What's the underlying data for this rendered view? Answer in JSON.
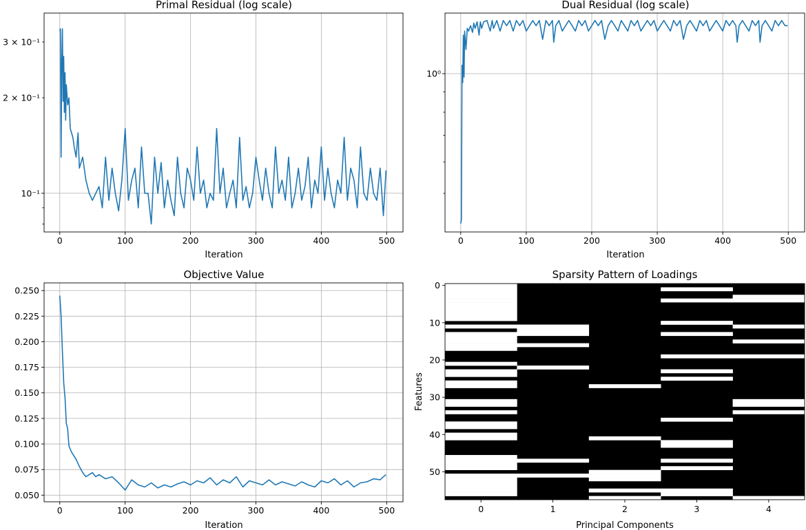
{
  "colors": {
    "line": "#1f77b4",
    "grid": "#b0b0b0",
    "on": "#000000",
    "off": "#ffffff"
  },
  "chart_data": [
    {
      "type": "line",
      "title": "Primal Residual (log scale)",
      "xlabel": "Iteration",
      "ylabel": "",
      "yscale": "log",
      "grid": true,
      "xlim": [
        -24,
        525
      ],
      "ylim": [
        0.0755,
        0.37
      ],
      "xticks": [
        0,
        100,
        200,
        300,
        400,
        500
      ],
      "ytick_labels": [
        {
          "value": 0.3,
          "label": "3 × 10⁻¹"
        },
        {
          "value": 0.2,
          "label": "2 × 10⁻¹"
        },
        {
          "value": 0.1,
          "label": "10⁻¹"
        }
      ],
      "x": [
        0,
        1,
        2,
        3,
        4,
        5,
        6,
        7,
        8,
        9,
        10,
        12,
        14,
        16,
        18,
        20,
        22,
        25,
        28,
        30,
        35,
        40,
        45,
        50,
        55,
        60,
        65,
        70,
        75,
        80,
        85,
        90,
        95,
        100,
        105,
        110,
        115,
        120,
        125,
        130,
        135,
        140,
        145,
        150,
        155,
        160,
        165,
        170,
        175,
        180,
        185,
        190,
        195,
        200,
        205,
        210,
        215,
        220,
        225,
        230,
        235,
        240,
        245,
        250,
        255,
        260,
        265,
        270,
        275,
        280,
        285,
        290,
        295,
        300,
        305,
        310,
        315,
        320,
        325,
        330,
        335,
        340,
        345,
        350,
        355,
        360,
        365,
        370,
        375,
        380,
        385,
        390,
        395,
        400,
        405,
        410,
        415,
        420,
        425,
        430,
        435,
        440,
        445,
        450,
        455,
        460,
        465,
        470,
        475,
        480,
        485,
        490,
        495,
        499
      ],
      "values": [
        0.325,
        0.33,
        0.13,
        0.26,
        0.33,
        0.195,
        0.27,
        0.18,
        0.24,
        0.17,
        0.22,
        0.19,
        0.2,
        0.16,
        0.155,
        0.15,
        0.14,
        0.13,
        0.155,
        0.12,
        0.13,
        0.11,
        0.1,
        0.095,
        0.1,
        0.105,
        0.09,
        0.13,
        0.095,
        0.12,
        0.1,
        0.088,
        0.11,
        0.16,
        0.095,
        0.11,
        0.12,
        0.09,
        0.14,
        0.1,
        0.1,
        0.08,
        0.13,
        0.1,
        0.125,
        0.09,
        0.11,
        0.095,
        0.085,
        0.13,
        0.1,
        0.09,
        0.12,
        0.11,
        0.095,
        0.14,
        0.1,
        0.11,
        0.09,
        0.1,
        0.095,
        0.16,
        0.1,
        0.12,
        0.09,
        0.1,
        0.11,
        0.09,
        0.15,
        0.095,
        0.105,
        0.09,
        0.1,
        0.13,
        0.11,
        0.095,
        0.12,
        0.1,
        0.09,
        0.14,
        0.1,
        0.11,
        0.095,
        0.13,
        0.09,
        0.1,
        0.12,
        0.095,
        0.105,
        0.13,
        0.09,
        0.11,
        0.1,
        0.14,
        0.095,
        0.12,
        0.1,
        0.09,
        0.11,
        0.1,
        0.15,
        0.095,
        0.12,
        0.11,
        0.09,
        0.14,
        0.1,
        0.095,
        0.12,
        0.1,
        0.095,
        0.12,
        0.085,
        0.118
      ]
    },
    {
      "type": "line",
      "title": "Dual Residual (log scale)",
      "xlabel": "Iteration",
      "ylabel": "",
      "yscale": "log",
      "grid": true,
      "xlim": [
        -24,
        525
      ],
      "ylim": [
        0.4,
        1.42
      ],
      "xticks": [
        0,
        100,
        200,
        300,
        400,
        500
      ],
      "ytick_labels": [
        {
          "value": 1.0,
          "label": "10⁰"
        }
      ],
      "x": [
        0,
        1,
        2,
        3,
        4,
        5,
        6,
        8,
        10,
        12,
        15,
        18,
        20,
        22,
        25,
        28,
        30,
        32,
        35,
        40,
        45,
        48,
        50,
        55,
        60,
        65,
        70,
        75,
        80,
        85,
        90,
        95,
        100,
        105,
        110,
        115,
        120,
        125,
        130,
        135,
        140,
        142,
        145,
        150,
        155,
        160,
        165,
        170,
        175,
        180,
        185,
        190,
        195,
        200,
        205,
        210,
        215,
        220,
        225,
        230,
        235,
        240,
        245,
        250,
        255,
        260,
        265,
        270,
        275,
        280,
        285,
        290,
        295,
        300,
        305,
        310,
        315,
        320,
        325,
        330,
        335,
        340,
        345,
        350,
        355,
        360,
        365,
        370,
        375,
        380,
        385,
        390,
        395,
        400,
        405,
        410,
        415,
        420,
        422,
        425,
        430,
        435,
        440,
        445,
        450,
        455,
        457,
        460,
        465,
        470,
        475,
        480,
        485,
        490,
        495,
        499
      ],
      "values": [
        0.42,
        0.43,
        1.05,
        0.95,
        1.25,
        0.98,
        1.28,
        1.15,
        1.3,
        1.28,
        1.32,
        1.27,
        1.34,
        1.3,
        1.35,
        1.25,
        1.35,
        1.3,
        1.35,
        1.36,
        1.28,
        1.36,
        1.3,
        1.36,
        1.28,
        1.36,
        1.32,
        1.36,
        1.28,
        1.36,
        1.32,
        1.36,
        1.28,
        1.32,
        1.36,
        1.32,
        1.36,
        1.22,
        1.36,
        1.32,
        1.36,
        1.2,
        1.32,
        1.36,
        1.28,
        1.32,
        1.36,
        1.32,
        1.28,
        1.36,
        1.32,
        1.36,
        1.28,
        1.32,
        1.36,
        1.32,
        1.36,
        1.22,
        1.32,
        1.36,
        1.32,
        1.28,
        1.36,
        1.32,
        1.28,
        1.36,
        1.32,
        1.36,
        1.28,
        1.32,
        1.36,
        1.32,
        1.36,
        1.28,
        1.32,
        1.36,
        1.32,
        1.28,
        1.36,
        1.32,
        1.36,
        1.22,
        1.32,
        1.36,
        1.32,
        1.28,
        1.36,
        1.32,
        1.36,
        1.28,
        1.32,
        1.36,
        1.32,
        1.28,
        1.36,
        1.32,
        1.36,
        1.32,
        1.2,
        1.32,
        1.36,
        1.32,
        1.28,
        1.36,
        1.32,
        1.36,
        1.2,
        1.32,
        1.36,
        1.32,
        1.28,
        1.36,
        1.32,
        1.36,
        1.32,
        1.32
      ]
    },
    {
      "type": "line",
      "title": "Objective Value",
      "xlabel": "Iteration",
      "ylabel": "",
      "yscale": "linear",
      "grid": true,
      "xlim": [
        -24,
        525
      ],
      "ylim": [
        0.0435,
        0.2575
      ],
      "xticks": [
        0,
        100,
        200,
        300,
        400,
        500
      ],
      "yticks": [
        0.05,
        0.075,
        0.1,
        0.125,
        0.15,
        0.175,
        0.2,
        0.225,
        0.25
      ],
      "ytick_labels_text": [
        "0.050",
        "0.075",
        "0.100",
        "0.125",
        "0.150",
        "0.175",
        "0.200",
        "0.225",
        "0.250"
      ],
      "x": [
        0,
        2,
        4,
        6,
        8,
        10,
        12,
        14,
        16,
        18,
        20,
        25,
        30,
        35,
        40,
        45,
        50,
        55,
        60,
        70,
        80,
        90,
        100,
        105,
        110,
        120,
        130,
        140,
        150,
        160,
        170,
        180,
        190,
        200,
        210,
        220,
        230,
        240,
        250,
        260,
        270,
        280,
        290,
        300,
        310,
        320,
        330,
        340,
        350,
        360,
        370,
        380,
        390,
        400,
        410,
        420,
        430,
        440,
        450,
        460,
        470,
        480,
        490,
        495,
        499
      ],
      "values": [
        0.245,
        0.225,
        0.19,
        0.16,
        0.145,
        0.12,
        0.115,
        0.098,
        0.095,
        0.092,
        0.09,
        0.085,
        0.078,
        0.072,
        0.068,
        0.07,
        0.072,
        0.068,
        0.07,
        0.066,
        0.068,
        0.062,
        0.055,
        0.06,
        0.065,
        0.06,
        0.058,
        0.062,
        0.057,
        0.06,
        0.058,
        0.061,
        0.063,
        0.06,
        0.064,
        0.062,
        0.067,
        0.06,
        0.065,
        0.062,
        0.068,
        0.058,
        0.064,
        0.062,
        0.06,
        0.065,
        0.06,
        0.063,
        0.061,
        0.059,
        0.063,
        0.06,
        0.058,
        0.064,
        0.062,
        0.066,
        0.06,
        0.064,
        0.058,
        0.062,
        0.063,
        0.066,
        0.065,
        0.068,
        0.07
      ]
    },
    {
      "type": "heatmap",
      "title": "Sparsity Pattern of Loadings",
      "xlabel": "Principal Components",
      "ylabel": "Features",
      "grid": false,
      "x_categories": [
        "0",
        "1",
        "2",
        "3",
        "4"
      ],
      "y_tick_values": [
        0,
        10,
        20,
        30,
        40,
        50
      ],
      "n_rows": 58,
      "encoding": "1 = white (zero loading), 0 = black (non-zero loading)",
      "columns": [
        [
          1,
          1,
          1,
          1,
          1,
          1,
          1,
          1,
          1,
          1,
          0,
          1,
          0,
          1,
          1,
          1,
          1,
          1,
          0,
          0,
          0,
          1,
          0,
          1,
          1,
          0,
          1,
          1,
          0,
          0,
          0,
          1,
          1,
          0,
          1,
          0,
          0,
          1,
          1,
          0,
          1,
          1,
          0,
          0,
          0,
          0,
          1,
          1,
          1,
          1,
          0,
          1,
          1,
          1,
          1,
          1,
          1,
          0
        ],
        [
          0,
          0,
          0,
          0,
          0,
          0,
          0,
          0,
          0,
          0,
          0,
          1,
          1,
          1,
          0,
          0,
          1,
          0,
          0,
          0,
          0,
          0,
          1,
          0,
          0,
          0,
          0,
          0,
          0,
          0,
          0,
          0,
          0,
          0,
          0,
          0,
          0,
          0,
          0,
          0,
          0,
          0,
          0,
          0,
          0,
          0,
          0,
          1,
          0,
          0,
          0,
          1,
          0,
          0,
          0,
          0,
          0,
          0
        ],
        [
          0,
          0,
          0,
          0,
          0,
          0,
          0,
          0,
          0,
          0,
          0,
          0,
          0,
          0,
          0,
          0,
          0,
          0,
          0,
          0,
          0,
          0,
          0,
          0,
          0,
          0,
          0,
          1,
          0,
          0,
          0,
          0,
          0,
          0,
          0,
          0,
          0,
          0,
          0,
          0,
          0,
          1,
          0,
          0,
          0,
          0,
          0,
          0,
          0,
          0,
          1,
          1,
          1,
          0,
          0,
          1,
          0,
          1
        ],
        [
          0,
          1,
          0,
          0,
          1,
          0,
          0,
          0,
          0,
          0,
          1,
          0,
          0,
          1,
          0,
          0,
          0,
          0,
          0,
          1,
          0,
          0,
          0,
          1,
          0,
          1,
          0,
          0,
          0,
          0,
          0,
          0,
          0,
          0,
          0,
          0,
          1,
          0,
          0,
          0,
          0,
          0,
          1,
          1,
          0,
          0,
          0,
          1,
          0,
          1,
          0,
          0,
          0,
          0,
          0,
          1,
          1,
          0
        ],
        [
          0,
          0,
          0,
          1,
          1,
          0,
          0,
          0,
          0,
          0,
          0,
          1,
          0,
          0,
          0,
          1,
          0,
          0,
          0,
          1,
          0,
          0,
          0,
          0,
          0,
          0,
          0,
          0,
          0,
          0,
          0,
          1,
          1,
          0,
          1,
          0,
          0,
          0,
          0,
          0,
          0,
          0,
          0,
          0,
          0,
          0,
          0,
          0,
          0,
          0,
          0,
          0,
          0,
          0,
          0,
          0,
          0,
          1
        ]
      ]
    }
  ]
}
